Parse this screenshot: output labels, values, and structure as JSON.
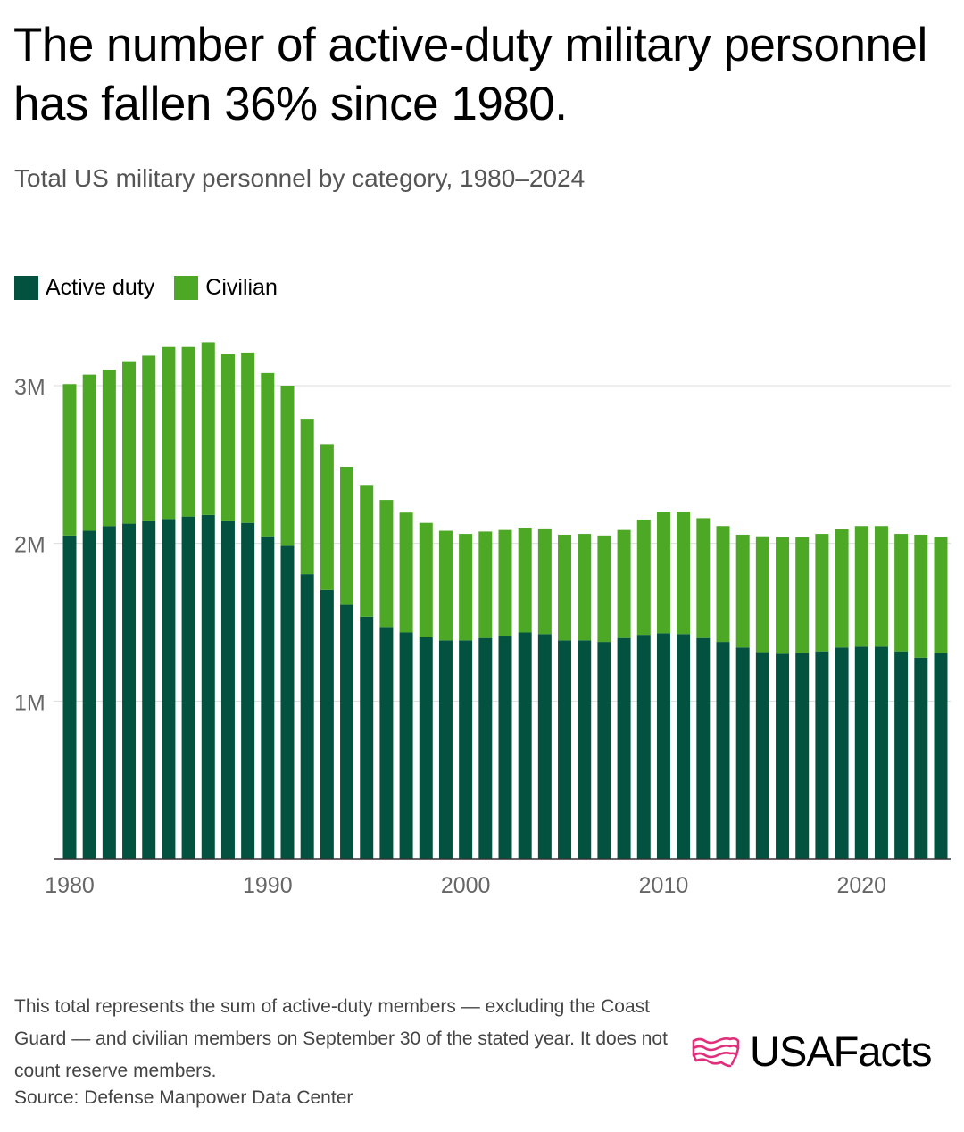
{
  "title": "The number of active-duty military personnel has fallen 36% since 1980.",
  "subtitle": "Total US military personnel by category, 1980–2024",
  "legend": {
    "active": "Active duty",
    "civilian": "Civilian"
  },
  "colors": {
    "active": "#02523F",
    "civilian": "#4DA826",
    "grid": "#dddddd",
    "axis": "#333333",
    "tick_text": "#666666",
    "logo_icon": "#E0307B"
  },
  "footnote": "This total represents the sum of active-duty members — excluding the Coast Guard — and civilian members on September 30 of the stated year. It does not count reserve members.",
  "source": "Source: Defense Manpower Data Center",
  "logo": {
    "text": "USAFacts",
    "icon": "usa-map-flag-icon"
  },
  "chart_data": {
    "type": "bar",
    "stacked": true,
    "title": "Total US military personnel by category, 1980–2024",
    "xlabel": "",
    "ylabel": "",
    "ylim": [
      0,
      3300000
    ],
    "grid": true,
    "legend_position": "top-left",
    "x_ticks": [
      {
        "value": 1980,
        "label": "1980"
      },
      {
        "value": 1990,
        "label": "1990"
      },
      {
        "value": 2000,
        "label": "2000"
      },
      {
        "value": 2010,
        "label": "2010"
      },
      {
        "value": 2020,
        "label": "2020"
      }
    ],
    "y_ticks": [
      {
        "value": 1000000,
        "label": "1M"
      },
      {
        "value": 2000000,
        "label": "2M"
      },
      {
        "value": 3000000,
        "label": "3M"
      }
    ],
    "categories": [
      1980,
      1981,
      1982,
      1983,
      1984,
      1985,
      1986,
      1987,
      1988,
      1989,
      1990,
      1991,
      1992,
      1993,
      1994,
      1995,
      1996,
      1997,
      1998,
      1999,
      2000,
      2001,
      2002,
      2003,
      2004,
      2005,
      2006,
      2007,
      2008,
      2009,
      2010,
      2011,
      2012,
      2013,
      2014,
      2015,
      2016,
      2017,
      2018,
      2019,
      2020,
      2021,
      2022,
      2023,
      2024
    ],
    "series": [
      {
        "name": "Active duty",
        "values": [
          2050000,
          2080000,
          2110000,
          2125000,
          2140000,
          2155000,
          2170000,
          2180000,
          2140000,
          2130000,
          2045000,
          1985000,
          1805000,
          1705000,
          1610000,
          1535000,
          1470000,
          1435000,
          1405000,
          1385000,
          1385000,
          1400000,
          1415000,
          1435000,
          1425000,
          1385000,
          1385000,
          1375000,
          1400000,
          1420000,
          1430000,
          1425000,
          1400000,
          1375000,
          1340000,
          1310000,
          1300000,
          1305000,
          1315000,
          1340000,
          1345000,
          1345000,
          1315000,
          1275000,
          1305000
        ]
      },
      {
        "name": "Civilian",
        "values": [
          960000,
          990000,
          990000,
          1030000,
          1050000,
          1090000,
          1075000,
          1095000,
          1060000,
          1080000,
          1035000,
          1015000,
          985000,
          925000,
          875000,
          835000,
          805000,
          760000,
          725000,
          695000,
          675000,
          675000,
          670000,
          665000,
          670000,
          670000,
          675000,
          675000,
          685000,
          730000,
          770000,
          775000,
          760000,
          735000,
          715000,
          735000,
          740000,
          735000,
          745000,
          750000,
          765000,
          765000,
          745000,
          780000,
          735000
        ]
      }
    ]
  }
}
